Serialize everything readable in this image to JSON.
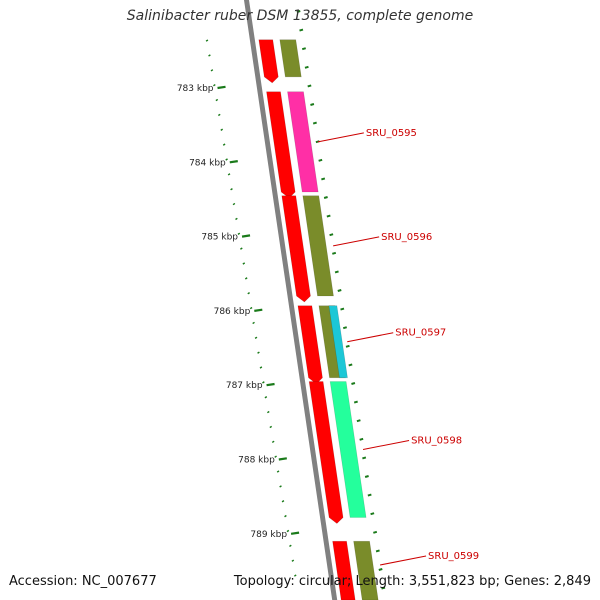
{
  "title": "Salinibacter ruber DSM 13855, complete genome",
  "accession": "Accession: NC_007677",
  "summary": "Topology: circular; Length: 3,551,823 bp; Genes: 2,849",
  "colors": {
    "background": "#ffffff",
    "backbone": "#808080",
    "tick_green": "#1a7a1a",
    "gene_label": "#cc0000",
    "cds": "#ff0000",
    "olive": "#7a8c2a",
    "magenta": "#ff2fa6",
    "cyan": "#1cc7d6",
    "spring_green": "#24ff9c"
  },
  "axis": {
    "unit": "kbp",
    "range_kbp": [
      782.35,
      789.95
    ],
    "major_ticks": [
      {
        "value": 783,
        "label": "783 kbp"
      },
      {
        "value": 784,
        "label": "784 kbp"
      },
      {
        "value": 785,
        "label": "785 kbp"
      },
      {
        "value": 786,
        "label": "786 kbp"
      },
      {
        "value": 787,
        "label": "787 kbp"
      },
      {
        "value": 788,
        "label": "788 kbp"
      },
      {
        "value": 789,
        "label": "789 kbp"
      }
    ]
  },
  "cds_features": [
    {
      "start": 782.35,
      "end": 782.85,
      "color": "#ff0000"
    },
    {
      "start": 783.05,
      "end": 784.4,
      "color": "#ff0000"
    },
    {
      "start": 784.45,
      "end": 785.8,
      "color": "#ff0000"
    },
    {
      "start": 785.93,
      "end": 786.9,
      "color": "#ff0000"
    },
    {
      "start": 786.95,
      "end": 788.78,
      "color": "#ff0000"
    },
    {
      "start": 789.1,
      "end": 789.95,
      "color": "#ff0000"
    }
  ],
  "gene_features": [
    {
      "start": 782.35,
      "end": 782.85,
      "color": "#7a8c2a"
    },
    {
      "start": 783.05,
      "end": 784.4,
      "color": "#ff2fa6",
      "label": "SRU_0595"
    },
    {
      "start": 784.45,
      "end": 785.8,
      "color": "#7a8c2a",
      "label": "SRU_0596"
    },
    {
      "start": 785.93,
      "end": 786.9,
      "color": "#7a8c2a",
      "label": "SRU_0597"
    },
    {
      "start": 786.95,
      "end": 788.78,
      "color": "#24ff9c",
      "label": "SRU_0598"
    },
    {
      "start": 789.1,
      "end": 789.95,
      "color": "#7a8c2a",
      "label": "SRU_0599"
    }
  ],
  "extra_features": [
    {
      "start": 785.93,
      "end": 786.9,
      "color": "#1cc7d6"
    }
  ]
}
